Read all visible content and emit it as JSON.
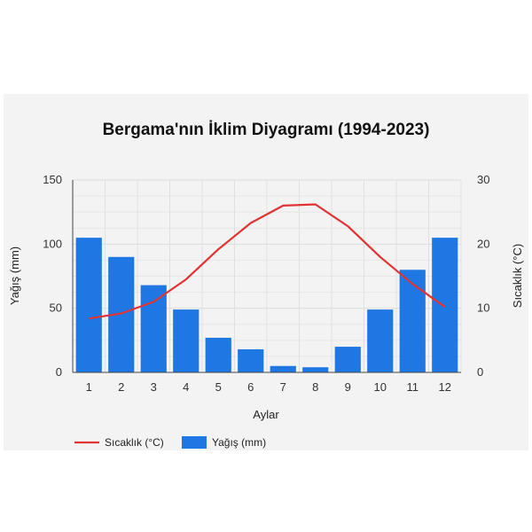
{
  "chart_data": {
    "type": "bar",
    "title": "Bergama'nın İklim Diyagramı (1994-2023)",
    "xlabel": "Aylar",
    "categories": [
      "1",
      "2",
      "3",
      "4",
      "5",
      "6",
      "7",
      "8",
      "9",
      "10",
      "11",
      "12"
    ],
    "y_left": {
      "label": "Yağış (mm)",
      "ylim": [
        0,
        150
      ],
      "ticks": [
        0,
        50,
        100,
        150
      ]
    },
    "y_right": {
      "label": "Sıcaklık (°C)",
      "ylim": [
        0,
        30
      ],
      "ticks": [
        0,
        10,
        20,
        30
      ]
    },
    "series": [
      {
        "name": "Yağış (mm)",
        "type": "bar",
        "axis": "left",
        "color": "#1f77e4",
        "values": [
          105,
          90,
          68,
          49,
          27,
          18,
          5,
          4,
          20,
          49,
          80,
          105
        ]
      },
      {
        "name": "Sıcaklık (°C)",
        "type": "line",
        "axis": "right",
        "color": "#e03333",
        "values": [
          8.4,
          9.2,
          11.0,
          14.5,
          19.2,
          23.3,
          26.0,
          26.2,
          22.8,
          18.0,
          13.8,
          10.2
        ]
      }
    ],
    "grid": true,
    "legend": "bottom-left"
  }
}
